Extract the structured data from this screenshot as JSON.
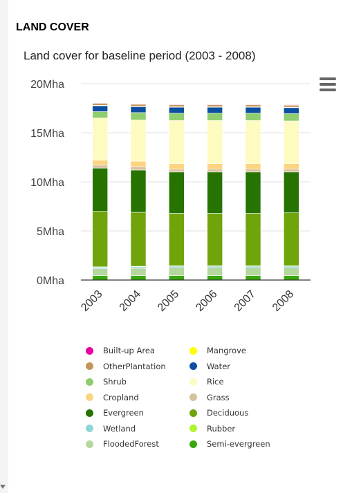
{
  "section": {
    "title": "LAND COVER"
  },
  "menu": {
    "icon": "hamburger-menu-icon"
  },
  "chart_data": {
    "type": "bar",
    "stacked": true,
    "title": "Land cover for baseline period (2003 - 2008)",
    "xlabel": "",
    "ylabel": "",
    "categories": [
      "2003",
      "2004",
      "2005",
      "2006",
      "2007",
      "2008"
    ],
    "yticks": [
      "0Mha",
      "5Mha",
      "10Mha",
      "15Mha",
      "20Mha"
    ],
    "ylim": [
      0,
      20
    ],
    "grid": true,
    "legend_position": "bottom",
    "series": [
      {
        "name": "Semi-evergreen",
        "color": "#3aa60e",
        "values": [
          0.45,
          0.45,
          0.45,
          0.45,
          0.45,
          0.45
        ]
      },
      {
        "name": "FloodedForest",
        "color": "#b4d79e",
        "values": [
          0.7,
          0.75,
          0.8,
          0.8,
          0.8,
          0.8
        ]
      },
      {
        "name": "Wetland",
        "color": "#8fd6d6",
        "values": [
          0.15,
          0.15,
          0.15,
          0.15,
          0.15,
          0.15
        ]
      },
      {
        "name": "Rubber",
        "color": "#aef42f",
        "values": [
          0.05,
          0.05,
          0.05,
          0.05,
          0.05,
          0.05
        ]
      },
      {
        "name": "Deciduous",
        "color": "#6fa40b",
        "values": [
          5.65,
          5.5,
          5.35,
          5.35,
          5.35,
          5.4
        ]
      },
      {
        "name": "Evergreen",
        "color": "#267300",
        "values": [
          4.4,
          4.3,
          4.2,
          4.2,
          4.2,
          4.15
        ]
      },
      {
        "name": "Grass",
        "color": "#d7c29e",
        "values": [
          0.3,
          0.35,
          0.3,
          0.3,
          0.3,
          0.3
        ]
      },
      {
        "name": "Cropland",
        "color": "#fcd37f",
        "values": [
          0.5,
          0.55,
          0.55,
          0.55,
          0.55,
          0.55
        ]
      },
      {
        "name": "Rice",
        "color": "#fdfbc0",
        "values": [
          4.3,
          4.2,
          4.4,
          4.4,
          4.4,
          4.35
        ]
      },
      {
        "name": "Shrub",
        "color": "#8fcd6e",
        "values": [
          0.65,
          0.75,
          0.75,
          0.75,
          0.75,
          0.75
        ]
      },
      {
        "name": "Water",
        "color": "#0b4ea2",
        "values": [
          0.6,
          0.6,
          0.6,
          0.6,
          0.6,
          0.6
        ]
      },
      {
        "name": "Mangrove",
        "color": "#ffff00",
        "values": [
          0.05,
          0.05,
          0.05,
          0.05,
          0.05,
          0.05
        ]
      },
      {
        "name": "OtherPlantation",
        "color": "#c4945a",
        "values": [
          0.2,
          0.2,
          0.2,
          0.2,
          0.2,
          0.2
        ]
      },
      {
        "name": "Built-up Area",
        "color": "#e8009e",
        "values": [
          0.05,
          0.05,
          0.05,
          0.05,
          0.05,
          0.05
        ]
      }
    ]
  },
  "legend_order": [
    "Built-up Area",
    "Mangrove",
    "OtherPlantation",
    "Water",
    "Shrub",
    "Rice",
    "Cropland",
    "Grass",
    "Evergreen",
    "Deciduous",
    "Wetland",
    "Rubber",
    "FloodedForest",
    "Semi-evergreen"
  ]
}
